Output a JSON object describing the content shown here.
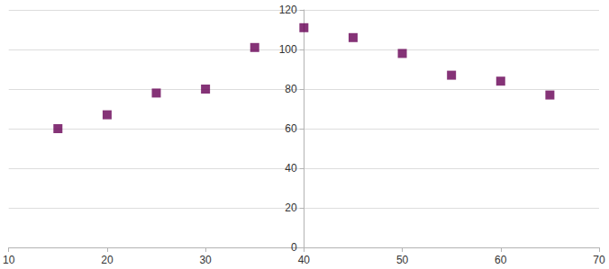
{
  "chart_data": {
    "type": "scatter",
    "x": [
      15,
      20,
      25,
      30,
      35,
      40,
      45,
      50,
      55,
      60,
      65
    ],
    "values": [
      60,
      67,
      78,
      80,
      101,
      111,
      106,
      98,
      87,
      84,
      77
    ],
    "color": "#660055",
    "marker": "square",
    "xlim": [
      10,
      70
    ],
    "xticks": [
      10,
      20,
      30,
      40,
      50,
      60,
      70
    ],
    "ylim": [
      0,
      120
    ],
    "yticks": [
      0,
      20,
      40,
      60,
      80,
      100,
      120
    ],
    "grid": true
  }
}
